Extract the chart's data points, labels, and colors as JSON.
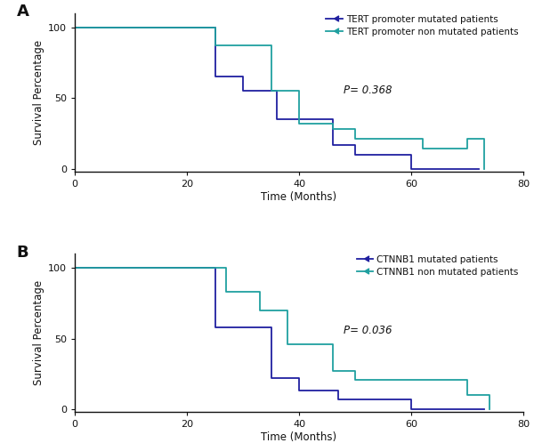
{
  "panel_A": {
    "label": "A",
    "p_text": "P= 0.368",
    "series1": {
      "label": "TERT promoter mutated patients",
      "color": "#2020a0",
      "x": [
        0,
        25,
        25,
        30,
        30,
        36,
        36,
        46,
        46,
        50,
        50,
        60,
        60,
        72,
        72
      ],
      "y": [
        100,
        100,
        65,
        65,
        55,
        55,
        35,
        35,
        17,
        17,
        10,
        10,
        0,
        0,
        0
      ]
    },
    "series2": {
      "label": "TERT promoter non mutated patients",
      "color": "#20a0a0",
      "x": [
        0,
        25,
        25,
        35,
        35,
        40,
        40,
        46,
        46,
        50,
        50,
        62,
        62,
        70,
        70,
        73,
        73
      ],
      "y": [
        100,
        100,
        87,
        87,
        55,
        55,
        32,
        32,
        28,
        28,
        21,
        21,
        14,
        14,
        21,
        21,
        0
      ]
    },
    "xlabel": "Time (Months)",
    "ylabel": "Survival Percentage",
    "xlim": [
      0,
      80
    ],
    "ylim": [
      -2,
      110
    ],
    "xticks": [
      0,
      20,
      40,
      60,
      80
    ],
    "yticks": [
      0,
      50,
      100
    ]
  },
  "panel_B": {
    "label": "B",
    "p_text": "P= 0.036",
    "series1": {
      "label": "CTNNB1 mutated patients",
      "color": "#2020a0",
      "x": [
        0,
        25,
        25,
        35,
        35,
        40,
        40,
        47,
        47,
        60,
        60,
        73,
        73
      ],
      "y": [
        100,
        100,
        58,
        58,
        22,
        22,
        13,
        13,
        7,
        7,
        0,
        0,
        0
      ]
    },
    "series2": {
      "label": "CTNNB1 non mutated patients",
      "color": "#20a0a0",
      "x": [
        0,
        27,
        27,
        33,
        33,
        38,
        38,
        46,
        46,
        50,
        50,
        65,
        65,
        70,
        70,
        74,
        74
      ],
      "y": [
        100,
        100,
        83,
        83,
        70,
        70,
        46,
        46,
        27,
        27,
        21,
        21,
        21,
        21,
        10,
        10,
        0
      ]
    },
    "xlabel": "Time (Months)",
    "ylabel": "Survival Percentage",
    "xlim": [
      0,
      80
    ],
    "ylim": [
      -2,
      110
    ],
    "xticks": [
      0,
      20,
      40,
      60,
      80
    ],
    "yticks": [
      0,
      50,
      100
    ]
  },
  "figure_bg": "#ffffff",
  "axes_bg": "#ffffff",
  "spine_color": "#111111",
  "tick_color": "#111111",
  "label_fontsize": 8.5,
  "legend_fontsize": 7.5,
  "panel_label_fontsize": 13,
  "p_fontsize": 8.5,
  "tick_fontsize": 8
}
